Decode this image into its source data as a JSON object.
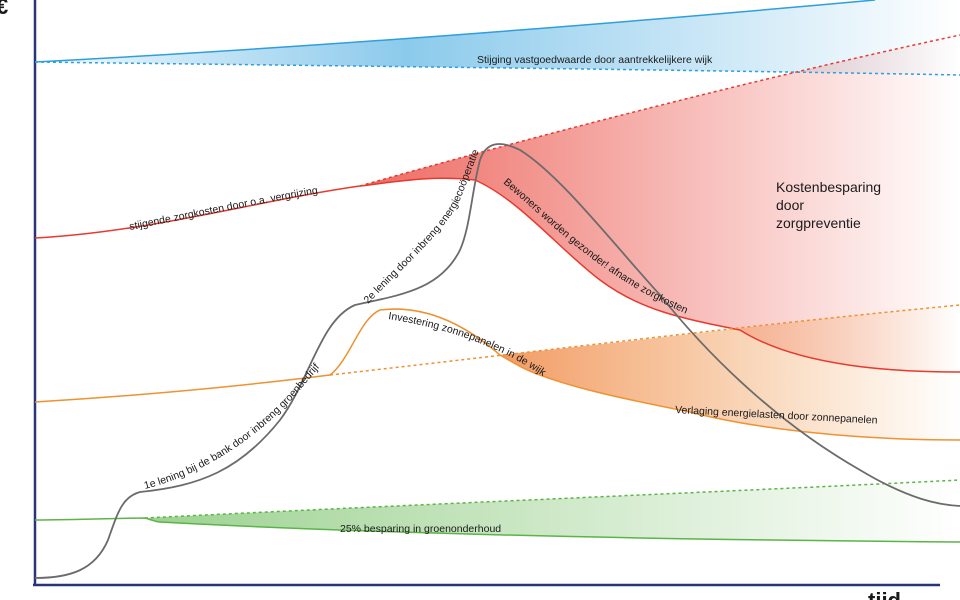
{
  "diagram": {
    "axis": {
      "x_label": "tijd",
      "y_label": "€"
    },
    "colors": {
      "blue": "#2d9fdc",
      "red": "#e8392e",
      "orange": "#ee9232",
      "green": "#5bb447",
      "grey": "#6b6b6b",
      "axis": "#27347a"
    },
    "labels": {
      "blue_gain": "Stijging vastgoedwaarde door aantrekkelijkere wijk",
      "care_costs": "stijgende zorgkosten door o.a. vergrijzing",
      "healthier": "Bewoners worden gezonder! afname zorgkosten",
      "saving_title_1": "Kostenbesparing",
      "saving_title_2": "door",
      "saving_title_3": "zorgpreventie",
      "energy_coop": "2e lening door inbreng energiecoöperatie",
      "bank_loan": "1e lening bij de bank door inbreng groenbedrijf",
      "solar_invest": "Investering zonnepanelen in de wijk",
      "energy_saving": "Verlaging energielasten door zonnepanelen",
      "green_saving": "25% besparing in groenonderhoud"
    }
  }
}
